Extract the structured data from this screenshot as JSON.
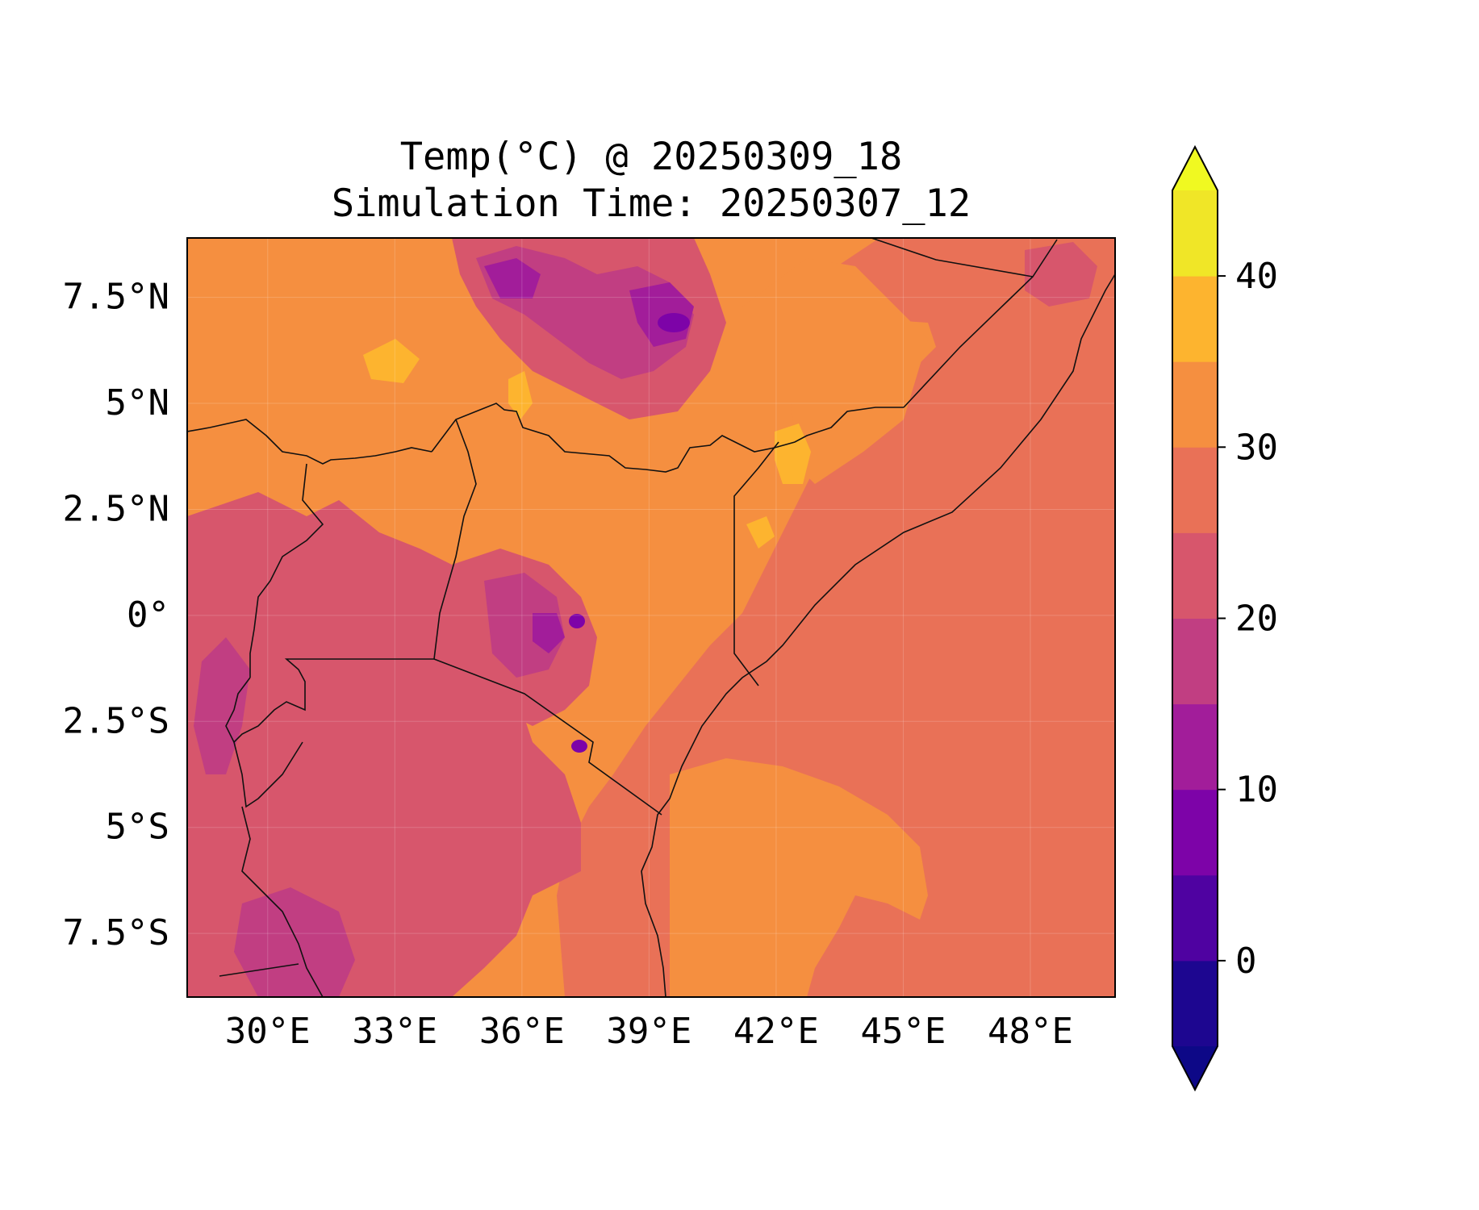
{
  "map": {
    "title_line1": "Temp(°C) @ 20250309_18",
    "title_line2": "Simulation Time: 20250307_12",
    "lon_ticks": [
      {
        "value": 30,
        "label": "30°E"
      },
      {
        "value": 33,
        "label": "33°E"
      },
      {
        "value": 36,
        "label": "36°E"
      },
      {
        "value": 39,
        "label": "39°E"
      },
      {
        "value": 42,
        "label": "42°E"
      },
      {
        "value": 45,
        "label": "45°E"
      },
      {
        "value": 48,
        "label": "48°E"
      }
    ],
    "lat_ticks": [
      {
        "value": 7.5,
        "label": "7.5°N"
      },
      {
        "value": 5,
        "label": "5°N"
      },
      {
        "value": 2.5,
        "label": "2.5°N"
      },
      {
        "value": 0,
        "label": "0°"
      },
      {
        "value": -2.5,
        "label": "2.5°S"
      },
      {
        "value": -5,
        "label": "5°S"
      },
      {
        "value": -7.5,
        "label": "7.5°S"
      }
    ],
    "lon_range": [
      28.1,
      50.0
    ],
    "lat_range": [
      -9.0,
      8.9
    ],
    "grid": true
  },
  "colorbar": {
    "levels": [
      -5,
      0,
      5,
      10,
      15,
      20,
      25,
      30,
      35,
      40,
      45
    ],
    "colors": [
      "#1d0690",
      "#4f02a1",
      "#7d03a8",
      "#a21d9a",
      "#c13e82",
      "#d7566c",
      "#e97157",
      "#f58f40",
      "#fdb42f",
      "#f0e627"
    ],
    "extend_low_color": "#0d0887",
    "extend_high_color": "#f0f921",
    "ticks": [
      {
        "value": 0,
        "label": "0"
      },
      {
        "value": 10,
        "label": "10"
      },
      {
        "value": 20,
        "label": "20"
      },
      {
        "value": 30,
        "label": "30"
      },
      {
        "value": 40,
        "label": "40"
      }
    ]
  },
  "colors": {
    "ocean": "#e97157",
    "land_warm": "#f58f40",
    "highland": "#d7566c",
    "mountain": "#c13e82",
    "peak": "#a21d9a",
    "summit": "#7d03a8",
    "hot": "#fdb42f",
    "border": "#111111"
  }
}
